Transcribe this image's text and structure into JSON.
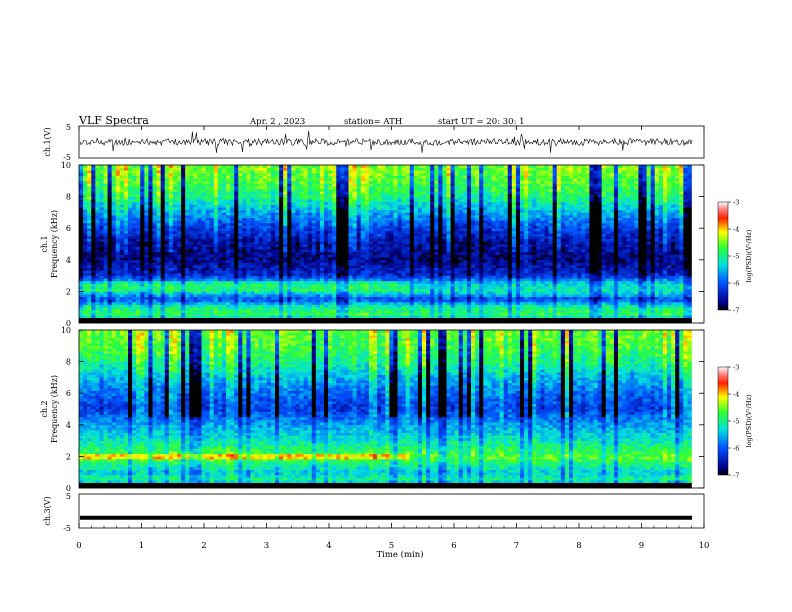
{
  "header": {
    "title": "VLF  Spectra",
    "date": "Apr. 2  , 2023",
    "station": "station= ATH",
    "start": "start  UT  =   20: 30: 1"
  },
  "chart_data": [
    {
      "type": "line",
      "name": "ch1-waveform",
      "ylabel": "ch.1(V)",
      "ylim": [
        -5,
        5
      ],
      "yticks": [
        "5",
        "-5"
      ],
      "xlim": [
        0,
        10
      ],
      "approx_level": 0,
      "approx_amplitude": 1.5,
      "color": "#000000"
    },
    {
      "type": "heatmap",
      "name": "ch1-spectrogram",
      "ylabel": "ch.1\nFrequency (kHz)",
      "ylim": [
        0,
        10
      ],
      "yticks": [
        "0",
        "2",
        "4",
        "6",
        "8",
        "10"
      ],
      "xlim": [
        0,
        9.8
      ],
      "colorbar": {
        "label": "log(PSD)(V²/Hz)",
        "range": [
          -7,
          -3
        ],
        "ticks": [
          "-3",
          "-4",
          "-5",
          "-6",
          "-7"
        ]
      },
      "approx_level_profile": [
        {
          "kHz": 0.0,
          "logPSD": -7.0
        },
        {
          "kHz": 0.5,
          "logPSD": -4.8
        },
        {
          "kHz": 1.0,
          "logPSD": -5.0
        },
        {
          "kHz": 1.5,
          "logPSD": -6.1
        },
        {
          "kHz": 2.0,
          "logPSD": -5.2
        },
        {
          "kHz": 2.5,
          "logPSD": -5.3
        },
        {
          "kHz": 3.0,
          "logPSD": -6.3
        },
        {
          "kHz": 4.0,
          "logPSD": -6.7
        },
        {
          "kHz": 5.0,
          "logPSD": -6.6
        },
        {
          "kHz": 6.0,
          "logPSD": -6.2
        },
        {
          "kHz": 7.0,
          "logPSD": -5.6
        },
        {
          "kHz": 8.0,
          "logPSD": -5.0
        },
        {
          "kHz": 9.0,
          "logPSD": -4.7
        },
        {
          "kHz": 10.0,
          "logPSD": -4.5
        }
      ]
    },
    {
      "type": "heatmap",
      "name": "ch2-spectrogram",
      "ylabel": "ch.2\nFrequency (kHz)",
      "ylim": [
        0,
        10
      ],
      "yticks": [
        "0",
        "2",
        "4",
        "6",
        "8",
        "10"
      ],
      "xlim": [
        0,
        9.8
      ],
      "colorbar": {
        "label": "log(PSD)(V²/Hz)",
        "range": [
          -7,
          -3
        ],
        "ticks": [
          "-3",
          "-4",
          "-5",
          "-6",
          "-7"
        ]
      },
      "approx_level_profile": [
        {
          "kHz": 0.0,
          "logPSD": -7.0
        },
        {
          "kHz": 0.5,
          "logPSD": -5.0
        },
        {
          "kHz": 1.0,
          "logPSD": -5.4
        },
        {
          "kHz": 2.0,
          "logPSD": -4.6
        },
        {
          "kHz": 3.0,
          "logPSD": -5.2
        },
        {
          "kHz": 4.0,
          "logPSD": -5.6
        },
        {
          "kHz": 5.0,
          "logPSD": -6.2
        },
        {
          "kHz": 6.0,
          "logPSD": -5.9
        },
        {
          "kHz": 7.0,
          "logPSD": -5.5
        },
        {
          "kHz": 8.0,
          "logPSD": -5.0
        },
        {
          "kHz": 9.0,
          "logPSD": -4.7
        },
        {
          "kHz": 10.0,
          "logPSD": -4.6
        }
      ]
    },
    {
      "type": "line",
      "name": "ch3-waveform",
      "ylabel": "ch.3(V)",
      "ylim": [
        -5,
        5
      ],
      "yticks": [
        "5",
        "-5"
      ],
      "xlim": [
        0,
        10
      ],
      "xlabel": "Time  (min)",
      "xticks": [
        "0",
        "1",
        "2",
        "3",
        "4",
        "5",
        "6",
        "7",
        "8",
        "9",
        "10"
      ],
      "approx_level": -2,
      "color": "#000000"
    }
  ]
}
